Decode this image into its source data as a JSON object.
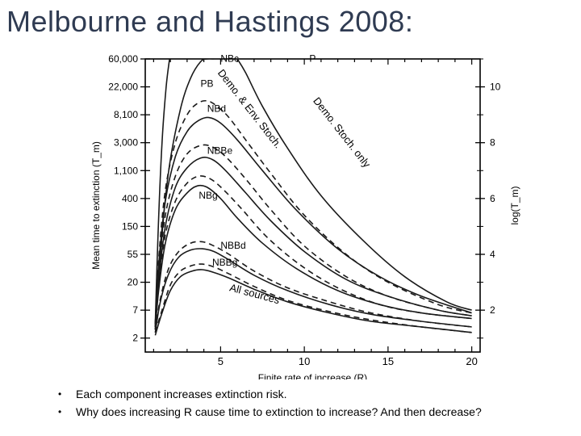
{
  "title": "Melbourne and Hastings 2008:",
  "bullets": [
    "Each component increases extinction risk.",
    "Why does increasing R cause time to extinction to increase?  And then decrease?"
  ],
  "chart_data": {
    "type": "line",
    "xlabel": "Finite rate of increase (R)",
    "ylabel": "Mean time to extinction (T_m)",
    "y2label": "log(T_m)",
    "xlim": [
      0.5,
      20.5
    ],
    "y2lim": [
      0.5,
      11
    ],
    "x_ticks": [
      5,
      10,
      15,
      20
    ],
    "x_tick_labels": [
      "5",
      "10",
      "15",
      "20"
    ],
    "y_ticks_log": [
      1.0,
      2.0,
      3.0,
      4.0,
      5.0,
      6.0,
      7.0,
      8.0,
      9.0,
      10.0,
      11.0
    ],
    "y_tick_labels": [
      "2",
      "7",
      "20",
      "55",
      "150",
      "400",
      "1,100",
      "3,000",
      "8,100",
      "22,000",
      "60,000"
    ],
    "y2_ticks": [
      2,
      4,
      6,
      8,
      10
    ],
    "y2_tick_labels": [
      "2",
      "4",
      "6",
      "8",
      "10"
    ],
    "grid": false,
    "series": [
      {
        "name": "P",
        "style": "solid",
        "x": [
          6.0,
          6.5,
          7.5,
          9.0,
          11.0,
          13.5,
          16.0,
          18.5,
          20.0
        ],
        "y": [
          11.0,
          10.5,
          9.3,
          7.8,
          6.1,
          4.5,
          3.2,
          2.3,
          2.0
        ]
      },
      {
        "name": "NBc",
        "style": "solid",
        "x": [
          1.1,
          1.25,
          1.5,
          1.75,
          1.95
        ],
        "y": [
          1.5,
          4.5,
          8.0,
          10.0,
          11.0
        ]
      },
      {
        "name": "PB",
        "style": "solid",
        "x": [
          1.1,
          1.4,
          1.9,
          2.6,
          3.2,
          3.8,
          4.2,
          4.6
        ],
        "y": [
          1.3,
          4.0,
          7.0,
          9.2,
          10.3,
          10.9,
          11.0,
          11.0
        ]
      },
      {
        "name": "NBd",
        "style": "dashed",
        "x": [
          1.1,
          1.3,
          1.7,
          2.3,
          3.0,
          3.6,
          4.2,
          4.8,
          5.5,
          6.5,
          8.0,
          10.0,
          12.5,
          15.0,
          18.0,
          20.0
        ],
        "y": [
          1.5,
          3.8,
          6.3,
          8.0,
          9.0,
          9.4,
          9.5,
          9.3,
          8.9,
          8.1,
          6.9,
          5.4,
          4.0,
          3.0,
          2.2,
          1.9
        ]
      },
      {
        "name": "NBd",
        "style": "solid",
        "x": [
          1.1,
          1.3,
          1.7,
          2.3,
          3.0,
          3.7,
          4.3,
          5.0,
          6.0,
          7.5,
          9.5,
          12.0,
          14.5,
          17.0,
          20.0
        ],
        "y": [
          1.4,
          3.6,
          5.9,
          7.5,
          8.4,
          8.8,
          8.9,
          8.7,
          8.1,
          7.0,
          5.6,
          4.2,
          3.2,
          2.5,
          1.9
        ]
      },
      {
        "name": "NBBe",
        "style": "dashed",
        "x": [
          1.1,
          1.3,
          1.7,
          2.3,
          3.0,
          3.8,
          4.5,
          5.3,
          6.5,
          8.0,
          10.0,
          12.5,
          15.0,
          18.0,
          20.0
        ],
        "y": [
          1.5,
          3.3,
          5.4,
          6.8,
          7.6,
          7.9,
          7.85,
          7.5,
          6.7,
          5.6,
          4.3,
          3.2,
          2.5,
          2.0,
          1.8
        ]
      },
      {
        "name": "NBBe",
        "style": "solid",
        "x": [
          1.1,
          1.3,
          1.7,
          2.3,
          3.0,
          3.8,
          4.5,
          5.3,
          6.5,
          8.0,
          10.0,
          12.5,
          15.0,
          18.0,
          20.0
        ],
        "y": [
          1.4,
          3.0,
          5.0,
          6.4,
          7.1,
          7.45,
          7.4,
          7.0,
          6.2,
          5.2,
          4.1,
          3.1,
          2.5,
          2.0,
          1.8
        ]
      },
      {
        "name": "NBg",
        "style": "dashed",
        "x": [
          1.1,
          1.3,
          1.7,
          2.3,
          3.0,
          3.7,
          4.4,
          5.2,
          6.3,
          7.8,
          9.8,
          12.0,
          14.5,
          17.0,
          20.0
        ],
        "y": [
          1.4,
          2.9,
          4.7,
          5.9,
          6.55,
          6.8,
          6.7,
          6.3,
          5.6,
          4.6,
          3.6,
          2.8,
          2.2,
          1.9,
          1.7
        ]
      },
      {
        "name": "NBg",
        "style": "solid",
        "x": [
          1.1,
          1.3,
          1.7,
          2.3,
          3.0,
          3.6,
          4.2,
          5.0,
          6.0,
          7.5,
          9.5,
          12.0,
          14.5,
          17.0,
          20.0
        ],
        "y": [
          1.3,
          2.7,
          4.4,
          5.6,
          6.2,
          6.45,
          6.4,
          6.0,
          5.3,
          4.4,
          3.5,
          2.7,
          2.2,
          1.9,
          1.7
        ]
      },
      {
        "name": "NBBd",
        "style": "dashed",
        "x": [
          1.1,
          1.4,
          1.9,
          2.5,
          3.2,
          3.9,
          4.6,
          5.5,
          7.0,
          9.0,
          11.5,
          14.0,
          17.0,
          20.0
        ],
        "y": [
          1.3,
          2.4,
          3.5,
          4.1,
          4.4,
          4.45,
          4.3,
          4.0,
          3.4,
          2.8,
          2.3,
          1.9,
          1.6,
          1.4
        ]
      },
      {
        "name": "NBBd",
        "style": "solid",
        "x": [
          1.1,
          1.4,
          1.9,
          2.5,
          3.2,
          3.9,
          4.6,
          5.5,
          7.0,
          9.0,
          11.5,
          14.0,
          17.0,
          20.0
        ],
        "y": [
          1.2,
          2.3,
          3.3,
          3.9,
          4.15,
          4.2,
          4.1,
          3.8,
          3.25,
          2.7,
          2.2,
          1.85,
          1.6,
          1.4
        ]
      },
      {
        "name": "NBBg",
        "style": "dashed",
        "x": [
          1.1,
          1.5,
          2.0,
          2.6,
          3.3,
          3.9,
          4.6,
          5.5,
          7.0,
          9.0,
          11.5,
          14.0,
          17.0,
          20.0
        ],
        "y": [
          1.2,
          2.0,
          2.9,
          3.4,
          3.6,
          3.65,
          3.55,
          3.3,
          2.85,
          2.35,
          1.95,
          1.65,
          1.4,
          1.2
        ]
      },
      {
        "name": "NBBg",
        "style": "solid",
        "x": [
          1.1,
          1.5,
          2.0,
          2.6,
          3.3,
          3.9,
          4.6,
          5.5,
          7.0,
          9.0,
          11.5,
          14.0,
          17.0,
          20.0
        ],
        "y": [
          1.1,
          1.9,
          2.7,
          3.2,
          3.4,
          3.45,
          3.35,
          3.15,
          2.75,
          2.3,
          1.9,
          1.6,
          1.4,
          1.2
        ]
      }
    ],
    "curve_labels": [
      {
        "text": "NBc",
        "x": 5.0,
        "y": 10.9
      },
      {
        "text": "P",
        "x": 10.3,
        "y": 10.9
      },
      {
        "text": "PB",
        "x": 3.8,
        "y": 10.0
      },
      {
        "text": "NBd",
        "x": 4.2,
        "y": 9.1
      },
      {
        "text": "NBBe",
        "x": 4.2,
        "y": 7.6
      },
      {
        "text": "NBg",
        "x": 3.7,
        "y": 6.0
      },
      {
        "text": "NBBd",
        "x": 5.0,
        "y": 4.2
      },
      {
        "text": "NBBg",
        "x": 4.5,
        "y": 3.6
      }
    ],
    "annotations": [
      {
        "text": "Demo. & Env. Stoch.",
        "x": 4.8,
        "y": 10.5,
        "rotate": 52
      },
      {
        "text": "Demo. Stoch. only",
        "x": 10.5,
        "y": 9.5,
        "rotate": 52
      },
      {
        "text": "All sources",
        "x": 5.5,
        "y": 2.7,
        "rotate": 15
      }
    ]
  }
}
